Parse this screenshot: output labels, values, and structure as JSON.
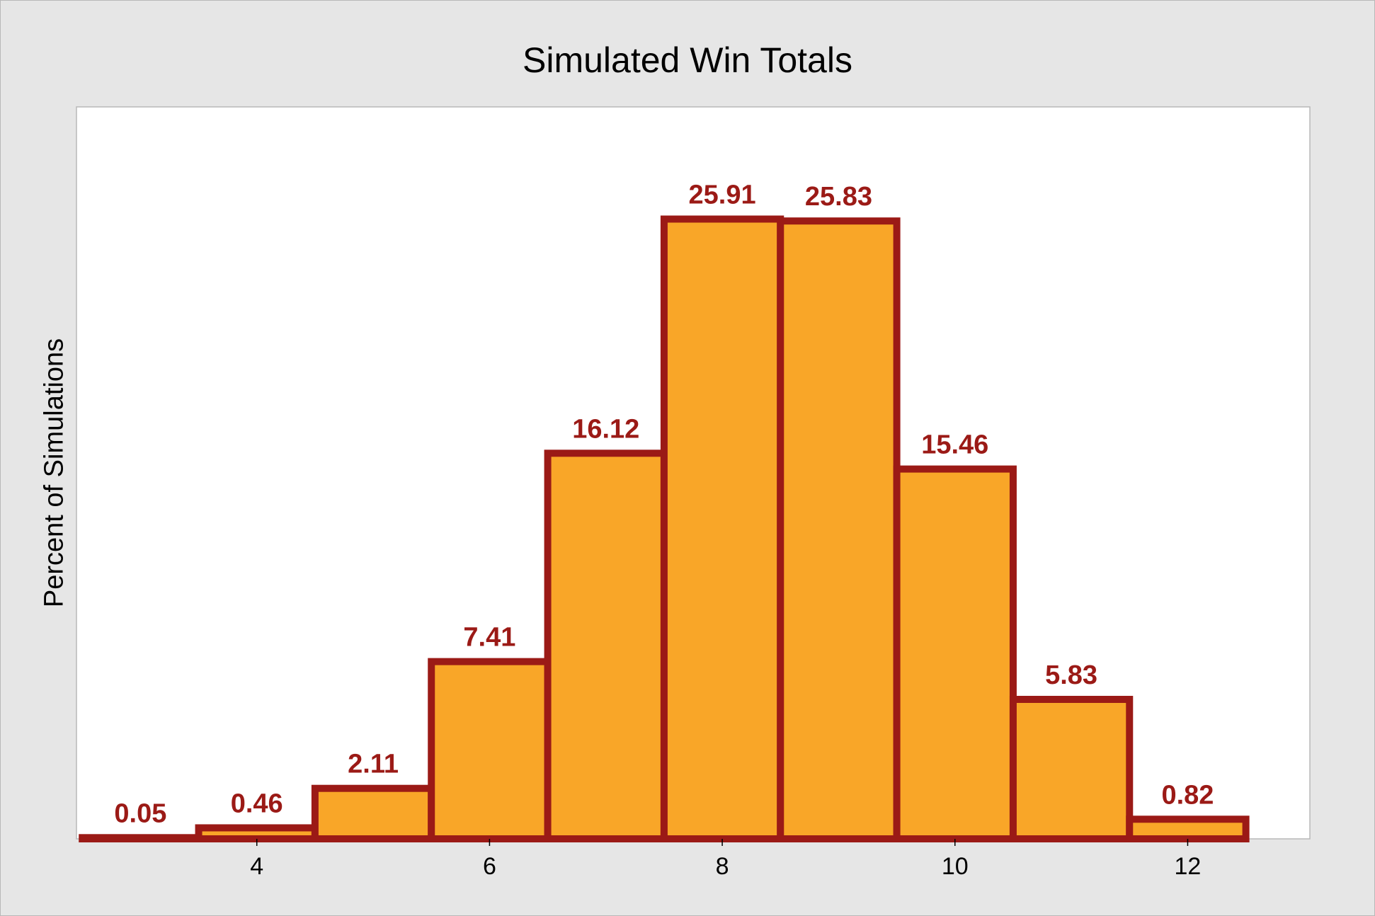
{
  "chart_data": {
    "type": "bar",
    "title": "Simulated Win Totals",
    "xlabel": "",
    "ylabel": "Percent of Simulations",
    "categories": [
      3,
      4,
      5,
      6,
      7,
      8,
      9,
      10,
      11,
      12
    ],
    "values": [
      0.05,
      0.46,
      2.11,
      7.41,
      16.12,
      25.91,
      25.83,
      15.46,
      5.83,
      0.82
    ],
    "data_labels": [
      "0.05",
      "0.46",
      "2.11",
      "7.41",
      "16.12",
      "25.91",
      "25.83",
      "15.46",
      "5.83",
      "0.82"
    ],
    "x_ticks": [
      "4",
      "6",
      "8",
      "10",
      "12"
    ],
    "x_tick_values": [
      4,
      6,
      8,
      10,
      12
    ],
    "xlim": [
      2.45,
      13.05
    ],
    "ylim": [
      0,
      30.6
    ],
    "grid": false,
    "colors": {
      "bar_fill": "#f9a628",
      "bar_edge": "#9b1a16",
      "label": "#9b1a16"
    }
  }
}
